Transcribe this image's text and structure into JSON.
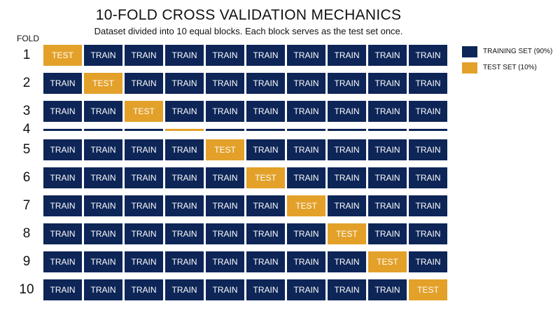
{
  "title": "10-FOLD CROSS VALIDATION MECHANICS",
  "subtitle": "Dataset divided into 10 equal blocks. Each block serves as the test set once.",
  "fold_header": "FOLD",
  "train_label": "TRAIN",
  "test_label": "TEST",
  "colors": {
    "train": "#0d2557",
    "test": "#e3a12a"
  },
  "legend": [
    {
      "label": "TRAINING SET (90%)",
      "color": "#0d2557"
    },
    {
      "label": "TEST SET (10%)",
      "color": "#e3a12a"
    }
  ],
  "folds": [
    {
      "number": "1",
      "test_index": 0,
      "collapsed": false
    },
    {
      "number": "2",
      "test_index": 1,
      "collapsed": false
    },
    {
      "number": "3",
      "test_index": 2,
      "collapsed": false
    },
    {
      "number": "4",
      "test_index": 3,
      "collapsed": true
    },
    {
      "number": "5",
      "test_index": 4,
      "collapsed": false
    },
    {
      "number": "6",
      "test_index": 5,
      "collapsed": false
    },
    {
      "number": "7",
      "test_index": 6,
      "collapsed": false
    },
    {
      "number": "8",
      "test_index": 7,
      "collapsed": false
    },
    {
      "number": "9",
      "test_index": 8,
      "collapsed": false
    },
    {
      "number": "10",
      "test_index": 9,
      "collapsed": false
    }
  ]
}
